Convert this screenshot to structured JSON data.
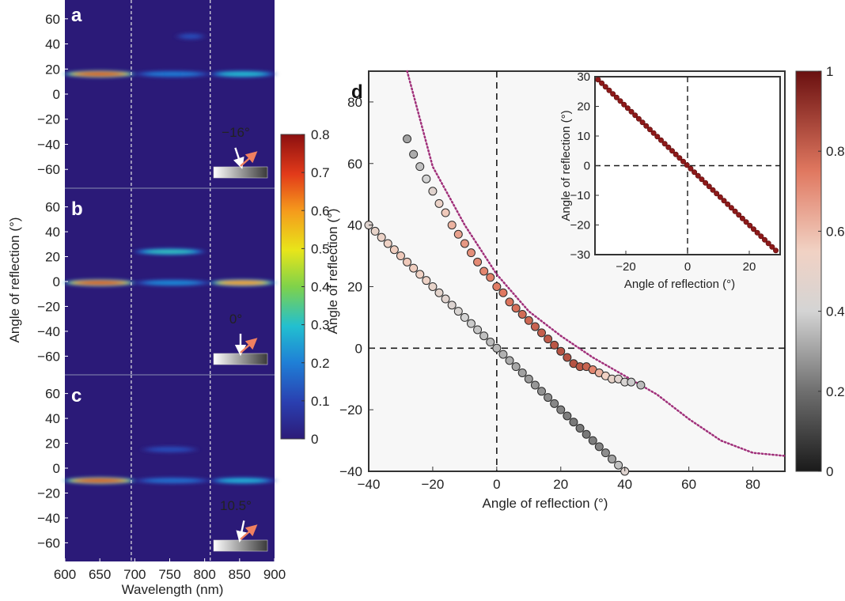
{
  "colors": {
    "heat_background": "#2b1a78",
    "marker_stroke": "#2a2a2a",
    "fit_curve": "#a0307a",
    "guide_line": "#1a1a1a"
  },
  "chart_data": [
    {
      "type": "heatmap",
      "panel": "a",
      "x_range": [
        600,
        900
      ],
      "y_range": [
        -75,
        75
      ],
      "y_ticks": [
        "60",
        "40",
        "20",
        "0",
        "−20",
        "−40",
        "−60"
      ],
      "x_ticks": [],
      "vlines_nm": [
        695,
        808
      ],
      "bands": [
        {
          "x0": 600,
          "x1": 700,
          "y": 16,
          "intensity": 0.72
        },
        {
          "x0": 700,
          "x1": 808,
          "y": 16,
          "intensity": 0.2
        },
        {
          "x0": 808,
          "x1": 900,
          "y": 16,
          "intensity": 0.3
        },
        {
          "x0": 760,
          "x1": 800,
          "y": 46,
          "intensity": 0.12
        }
      ],
      "inset_angle": "−16°",
      "inset_tilt_deg": -16
    },
    {
      "type": "heatmap",
      "panel": "b",
      "x_range": [
        600,
        900
      ],
      "y_range": [
        -75,
        75
      ],
      "y_ticks": [
        "60",
        "40",
        "20",
        "0",
        "−20",
        "−40",
        "−60"
      ],
      "x_ticks": [],
      "vlines_nm": [
        695,
        808
      ],
      "bands": [
        {
          "x0": 600,
          "x1": 700,
          "y": -1,
          "intensity": 0.72
        },
        {
          "x0": 700,
          "x1": 808,
          "y": -1,
          "intensity": 0.22
        },
        {
          "x0": 808,
          "x1": 900,
          "y": -1,
          "intensity": 0.62
        },
        {
          "x0": 700,
          "x1": 800,
          "y": 24,
          "intensity": 0.32
        }
      ],
      "inset_angle": "0°",
      "inset_tilt_deg": 0
    },
    {
      "type": "heatmap",
      "panel": "c",
      "x_range": [
        600,
        900
      ],
      "y_range": [
        -75,
        75
      ],
      "y_ticks": [
        "60",
        "40",
        "20",
        "0",
        "−20",
        "−40",
        "−60"
      ],
      "x_ticks": [
        "600",
        "650",
        "700",
        "750",
        "800",
        "850",
        "900"
      ],
      "vlines_nm": [
        695,
        808
      ],
      "bands": [
        {
          "x0": 600,
          "x1": 700,
          "y": -10,
          "intensity": 0.72
        },
        {
          "x0": 700,
          "x1": 808,
          "y": -10,
          "intensity": 0.18
        },
        {
          "x0": 808,
          "x1": 900,
          "y": -10,
          "intensity": 0.28
        },
        {
          "x0": 710,
          "x1": 790,
          "y": 15,
          "intensity": 0.12
        }
      ],
      "inset_angle": "10.5°",
      "inset_tilt_deg": 10.5
    },
    {
      "type": "colorbar",
      "colormap": "jet",
      "range": [
        0,
        0.8
      ],
      "ticks": [
        "0.8",
        "0.7",
        "0.6",
        "0.5",
        "0.4",
        "0.3",
        "0.2",
        "0.1",
        "0"
      ]
    },
    {
      "type": "scatter",
      "panel": "d",
      "xlim": [
        -40,
        90
      ],
      "ylim": [
        -40,
        90
      ],
      "xlabel": "Angle of reflection (°)",
      "ylabel": "Angle of reflection (°)",
      "x_ticks": [
        "−40",
        "−20",
        "0",
        "20",
        "40",
        "60",
        "80"
      ],
      "y_ticks": [
        "80",
        "60",
        "40",
        "20",
        "0",
        "−20",
        "−40"
      ],
      "series": [
        {
          "x": [
            -28,
            -26,
            -24,
            -22,
            -20,
            -18,
            -16,
            -14,
            -12,
            -10,
            -8,
            -6,
            -4,
            -2,
            0,
            2,
            4,
            6,
            8,
            10,
            12,
            14,
            16,
            18,
            20,
            22,
            24,
            26,
            28,
            30,
            32,
            34,
            36,
            38,
            40,
            42,
            45
          ],
          "y": [
            68,
            63,
            59,
            55,
            51,
            47,
            44,
            40,
            37,
            34,
            31,
            28,
            25,
            23,
            20,
            18,
            15,
            13,
            11,
            9,
            7,
            5,
            3,
            1,
            -1,
            -3,
            -5,
            -6,
            -6,
            -7,
            -8,
            -9,
            -10,
            -10,
            -11,
            -11,
            -12
          ],
          "values": [
            0.3,
            0.32,
            0.36,
            0.4,
            0.46,
            0.52,
            0.57,
            0.62,
            0.66,
            0.68,
            0.7,
            0.71,
            0.72,
            0.73,
            0.74,
            0.75,
            0.76,
            0.77,
            0.78,
            0.79,
            0.8,
            0.81,
            0.82,
            0.83,
            0.84,
            0.84,
            0.84,
            0.83,
            0.8,
            0.72,
            0.62,
            0.55,
            0.5,
            0.46,
            0.42,
            0.38,
            0.35
          ]
        },
        {
          "x": [
            -40,
            -38,
            -36,
            -34,
            -32,
            -30,
            -28,
            -26,
            -24,
            -22,
            -20,
            -18,
            -16,
            -14,
            -12,
            -10,
            -8,
            -6,
            -4,
            -2,
            0,
            2,
            4,
            6,
            8,
            10,
            12,
            14,
            16,
            18,
            20,
            22,
            24,
            26,
            28,
            30,
            32,
            34,
            36,
            38,
            40
          ],
          "y": [
            40,
            38,
            36,
            34,
            32,
            30,
            28,
            26,
            24,
            22,
            20,
            18,
            16,
            14,
            12,
            10,
            8,
            6,
            4,
            2,
            0,
            -2,
            -4,
            -6,
            -8,
            -10,
            -12,
            -14,
            -16,
            -18,
            -20,
            -22,
            -24,
            -26,
            -28,
            -30,
            -32,
            -34,
            -36,
            -38,
            -40
          ],
          "values": [
            0.45,
            0.5,
            0.52,
            0.54,
            0.56,
            0.57,
            0.57,
            0.56,
            0.55,
            0.53,
            0.5,
            0.48,
            0.46,
            0.44,
            0.42,
            0.4,
            0.38,
            0.37,
            0.36,
            0.35,
            0.34,
            0.33,
            0.32,
            0.31,
            0.3,
            0.29,
            0.28,
            0.27,
            0.26,
            0.25,
            0.24,
            0.23,
            0.22,
            0.22,
            0.22,
            0.23,
            0.24,
            0.26,
            0.3,
            0.36,
            0.45
          ]
        }
      ],
      "fit_curve_x": [
        -28,
        -20,
        -10,
        0,
        10,
        20,
        30,
        40,
        45,
        50,
        60,
        70,
        80,
        90
      ],
      "fit_curve_y": [
        90,
        59,
        40,
        24,
        12,
        4,
        -3,
        -9,
        -12,
        -15,
        -23,
        -30,
        -34,
        -35
      ],
      "inset": {
        "xlim": [
          -30,
          30
        ],
        "ylim": [
          -30,
          30
        ],
        "xlabel": "Angle of reflection (°)",
        "ylabel": "Angle of reflection (°)",
        "x_ticks": [
          "−20",
          "0",
          "20"
        ],
        "y_ticks": [
          "30",
          "20",
          "10",
          "0",
          "−10",
          "−20",
          "−30"
        ]
      }
    },
    {
      "type": "colorbar",
      "colormap": "red-gray",
      "range": [
        0,
        1
      ],
      "ticks": [
        "1",
        "0.8",
        "0.6",
        "0.4",
        "0.2",
        "0"
      ]
    }
  ],
  "labels": {
    "panel_a": "a",
    "panel_b": "b",
    "panel_c": "c",
    "panel_d": "d",
    "heat_ylabel": "Angle of reflection (°)",
    "heat_xlabel": "Wavelength (nm)"
  }
}
